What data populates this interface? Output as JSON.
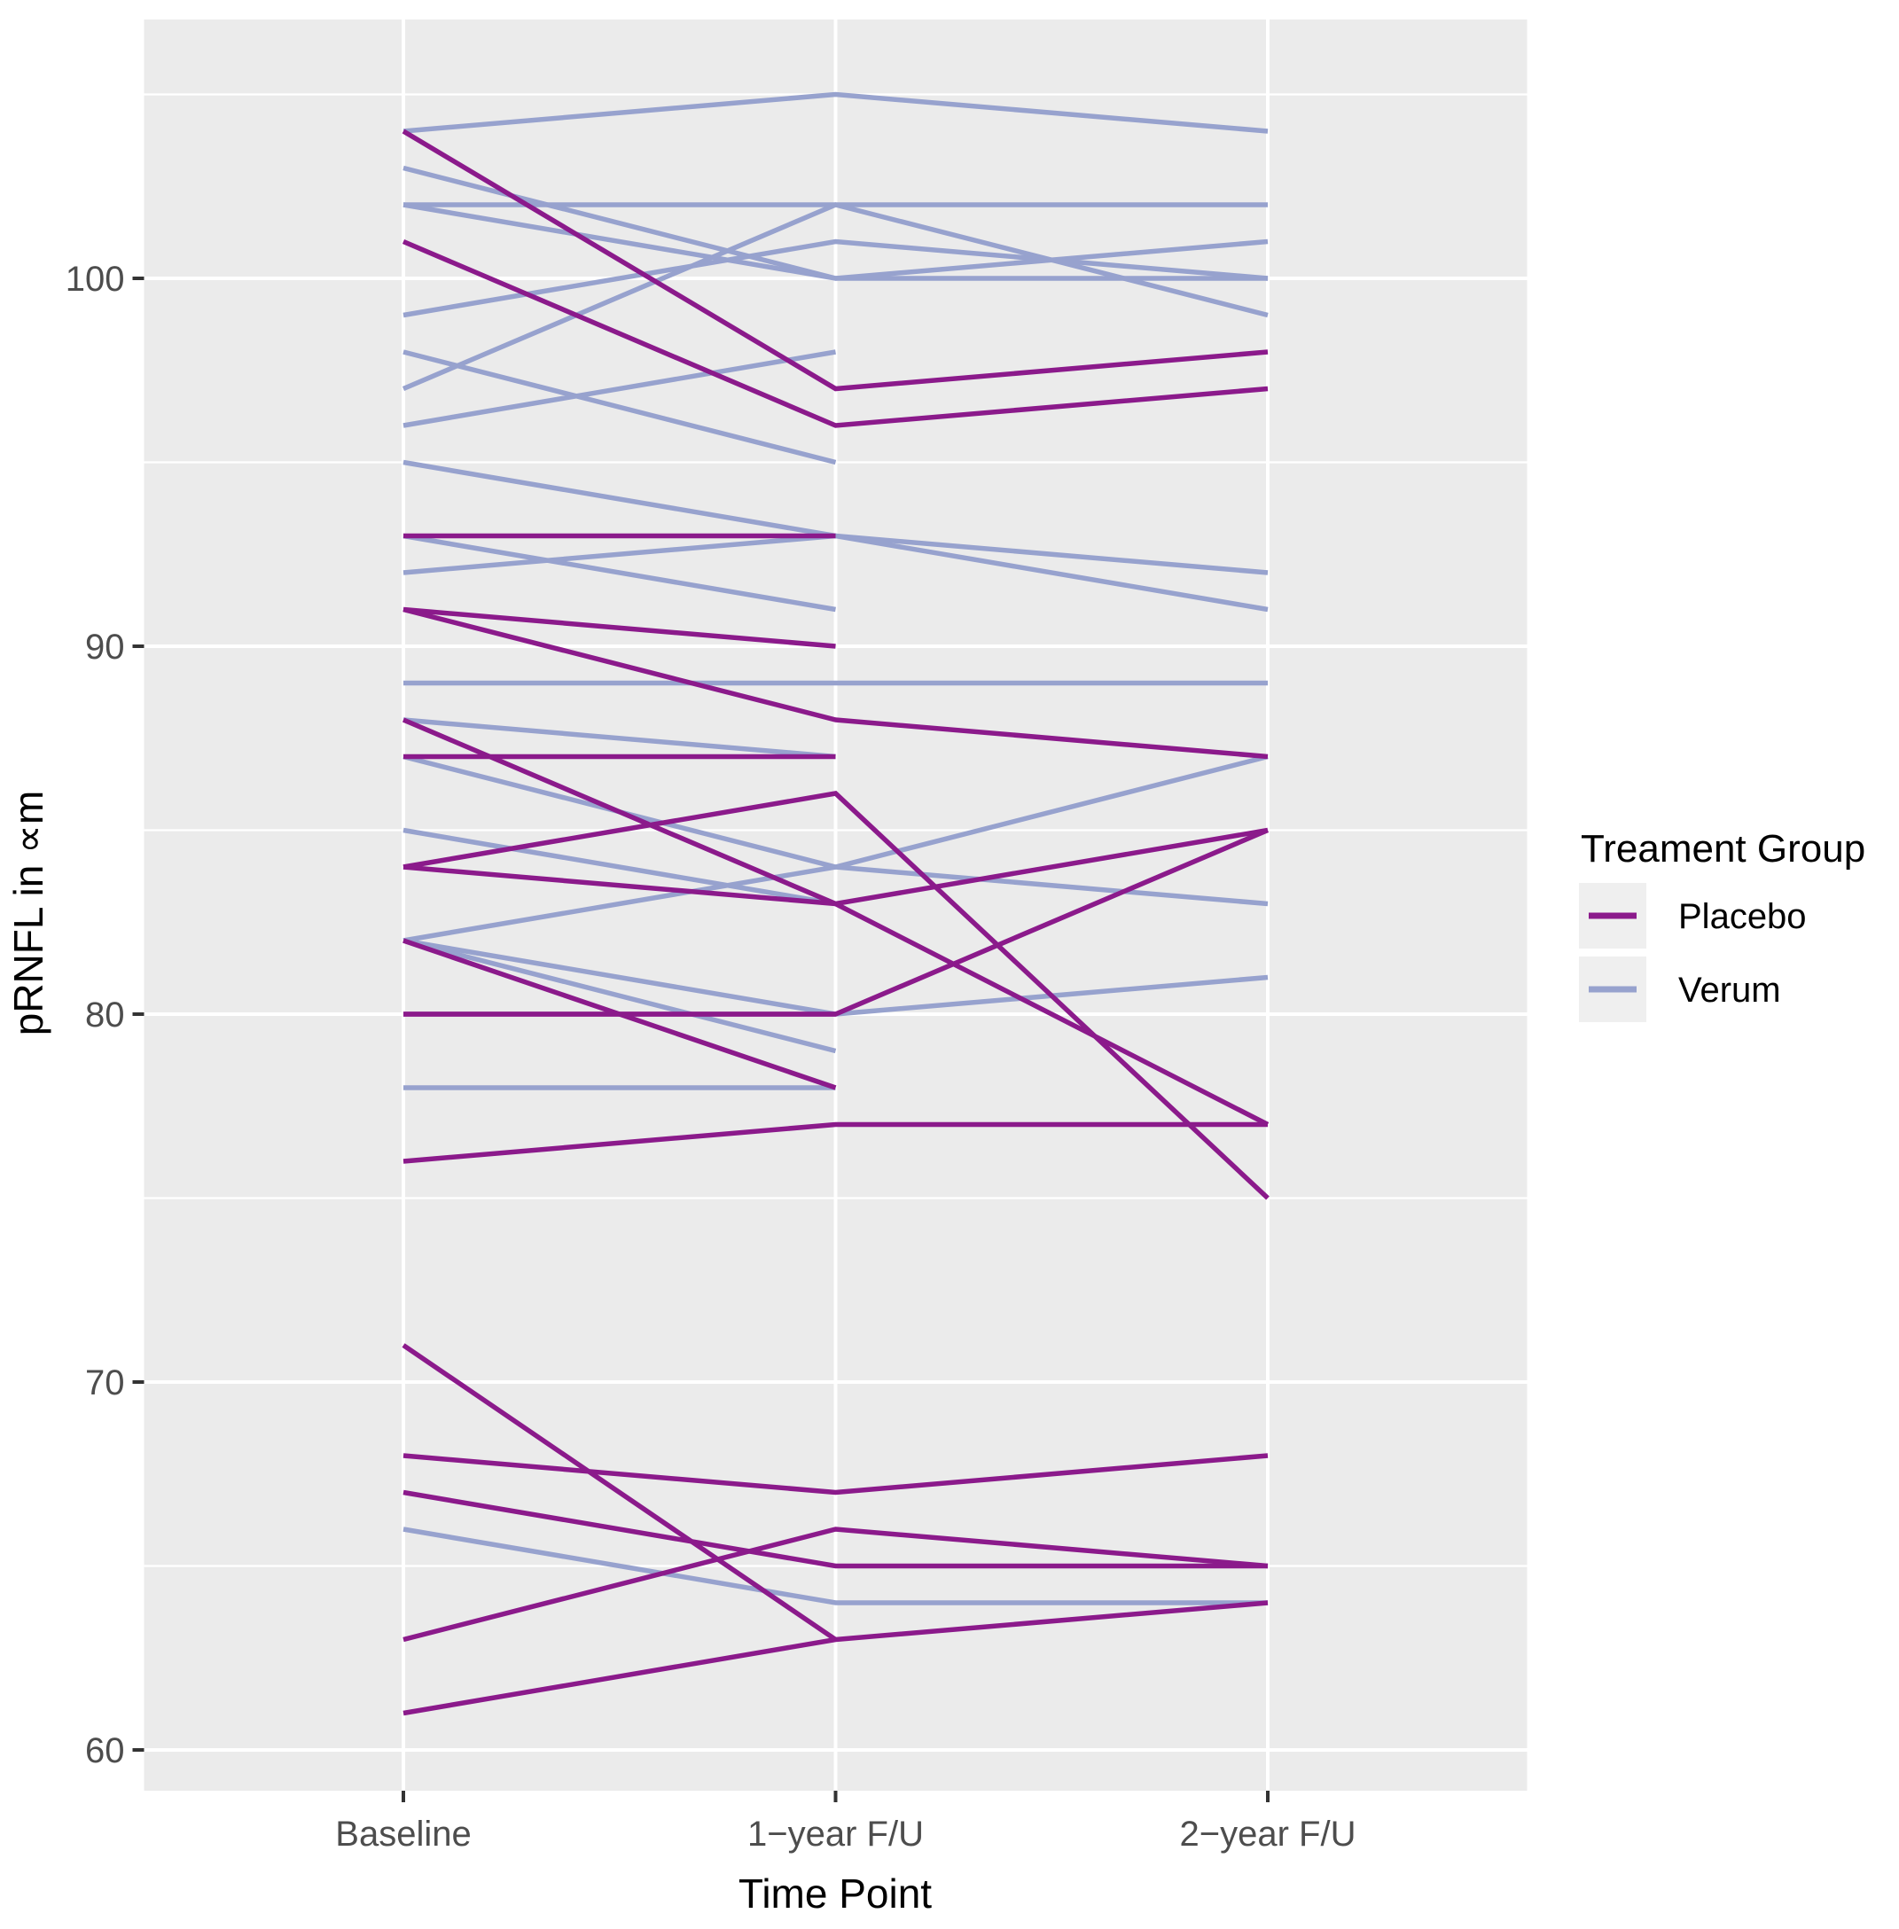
{
  "chart_data": {
    "type": "line",
    "title": "",
    "xlabel": "Time Point",
    "ylabel": "pRNFL in ∝m",
    "categories": [
      "Baseline",
      "1−year F/U",
      "2−year F/U"
    ],
    "yticks": [
      60,
      70,
      80,
      90,
      100
    ],
    "yticks_minor": [
      65,
      75,
      85,
      95,
      105
    ],
    "ylim": [
      58.9,
      107.0
    ],
    "grid": "major and minor horizontal white lines, white vertical line per category, grey panel",
    "legend": {
      "title": "Treament Group",
      "position": "right",
      "entries": [
        {
          "label": "Placebo",
          "color": "#8B1A8B"
        },
        {
          "label": "Verum",
          "color": "#97A2CE"
        }
      ]
    },
    "series": [
      {
        "group": "Verum",
        "values": [
          104,
          105,
          104
        ]
      },
      {
        "group": "Verum",
        "values": [
          103,
          100,
          101
        ]
      },
      {
        "group": "Verum",
        "values": [
          102,
          102,
          102
        ]
      },
      {
        "group": "Verum",
        "values": [
          102,
          100,
          100
        ]
      },
      {
        "group": "Verum",
        "values": [
          99,
          101,
          100
        ]
      },
      {
        "group": "Verum",
        "values": [
          98,
          95,
          null
        ]
      },
      {
        "group": "Verum",
        "values": [
          97,
          102,
          99
        ]
      },
      {
        "group": "Verum",
        "values": [
          96,
          98,
          null
        ]
      },
      {
        "group": "Verum",
        "values": [
          95,
          93,
          91
        ]
      },
      {
        "group": "Verum",
        "values": [
          93,
          91,
          null
        ]
      },
      {
        "group": "Verum",
        "values": [
          92,
          93,
          92
        ]
      },
      {
        "group": "Verum",
        "values": [
          89,
          89,
          89
        ]
      },
      {
        "group": "Verum",
        "values": [
          88,
          87,
          null
        ]
      },
      {
        "group": "Verum",
        "values": [
          87,
          84,
          83
        ]
      },
      {
        "group": "Verum",
        "values": [
          85,
          83,
          null
        ]
      },
      {
        "group": "Verum",
        "values": [
          82,
          84,
          87
        ]
      },
      {
        "group": "Verum",
        "values": [
          82,
          80,
          81
        ]
      },
      {
        "group": "Verum",
        "values": [
          82,
          79,
          null
        ]
      },
      {
        "group": "Verum",
        "values": [
          78,
          78,
          null
        ]
      },
      {
        "group": "Verum",
        "values": [
          66,
          64,
          64
        ]
      },
      {
        "group": "Placebo",
        "values": [
          104,
          97,
          98
        ]
      },
      {
        "group": "Placebo",
        "values": [
          101,
          96,
          97
        ]
      },
      {
        "group": "Placebo",
        "values": [
          93,
          93,
          null
        ]
      },
      {
        "group": "Placebo",
        "values": [
          91,
          90,
          null
        ]
      },
      {
        "group": "Placebo",
        "values": [
          91,
          88,
          87
        ]
      },
      {
        "group": "Placebo",
        "values": [
          88,
          83,
          77
        ]
      },
      {
        "group": "Placebo",
        "values": [
          87,
          87,
          null
        ]
      },
      {
        "group": "Placebo",
        "values": [
          84,
          86,
          75
        ]
      },
      {
        "group": "Placebo",
        "values": [
          84,
          83,
          85
        ]
      },
      {
        "group": "Placebo",
        "values": [
          82,
          78,
          null
        ]
      },
      {
        "group": "Placebo",
        "values": [
          80,
          80,
          85
        ]
      },
      {
        "group": "Placebo",
        "values": [
          80,
          80,
          null
        ]
      },
      {
        "group": "Placebo",
        "values": [
          76,
          77,
          77
        ]
      },
      {
        "group": "Placebo",
        "values": [
          71,
          63,
          null
        ]
      },
      {
        "group": "Placebo",
        "values": [
          68,
          67,
          68
        ]
      },
      {
        "group": "Placebo",
        "values": [
          67,
          65,
          65
        ]
      },
      {
        "group": "Placebo",
        "values": [
          63,
          66,
          65
        ]
      },
      {
        "group": "Placebo",
        "values": [
          61,
          63,
          64
        ]
      }
    ],
    "style": {
      "panel_bg": "#EBEBEB",
      "grid_color": "#FFFFFF",
      "tick_text_color": "#4D4D4D",
      "axis_title_color": "#000000",
      "tick_mark_color": "#333333",
      "legend_key_bg": "#EFEFEF",
      "placebo_color": "#8B1A8B",
      "verum_color": "#97A2CE"
    }
  }
}
